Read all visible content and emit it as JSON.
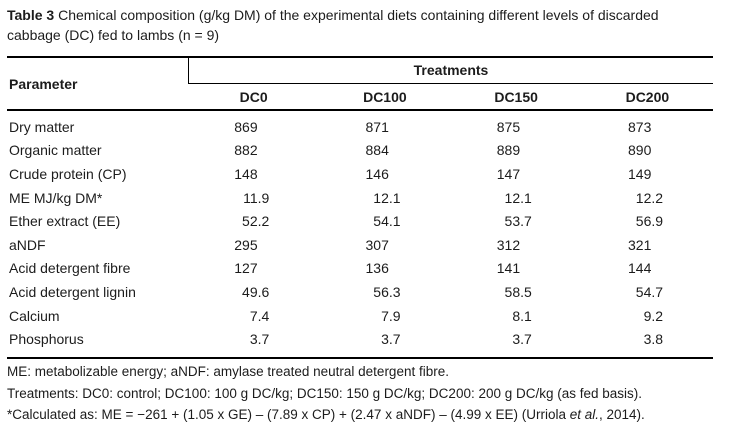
{
  "caption": {
    "label": "Table 3",
    "line1_rest": " Chemical composition (g/kg DM) of the experimental diets containing different levels of discarded",
    "line2": "cabbage (DC) fed to lambs (n = 9)"
  },
  "table": {
    "param_header": "Parameter",
    "group_header": "Treatments",
    "columns": [
      "DC0",
      "DC100",
      "DC150",
      "DC200"
    ],
    "rows": [
      {
        "parameter": "Dry matter",
        "values": [
          "869",
          "871",
          "875",
          "873"
        ]
      },
      {
        "parameter": "Organic matter",
        "values": [
          "882",
          "884",
          "889",
          "890"
        ]
      },
      {
        "parameter": "Crude protein (CP)",
        "values": [
          "148",
          "146",
          "147",
          "149"
        ]
      },
      {
        "parameter": "ME MJ/kg DM*",
        "values": [
          "11.9",
          "12.1",
          "12.1",
          "12.2"
        ]
      },
      {
        "parameter": "Ether extract (EE)",
        "values": [
          "52.2",
          "54.1",
          "53.7",
          "56.9"
        ]
      },
      {
        "parameter": "aNDF",
        "values": [
          "295",
          "307",
          "312",
          "321"
        ]
      },
      {
        "parameter": "Acid detergent fibre",
        "values": [
          "127",
          "136",
          "141",
          "144"
        ]
      },
      {
        "parameter": "Acid detergent lignin",
        "values": [
          "49.6",
          "56.3",
          "58.5",
          "54.7"
        ]
      },
      {
        "parameter": "Calcium",
        "values": [
          "7.4",
          "7.9",
          "8.1",
          "9.2"
        ]
      },
      {
        "parameter": "Phosphorus",
        "values": [
          "3.7",
          "3.7",
          "3.7",
          "3.8"
        ]
      }
    ]
  },
  "footnotes": {
    "line1": "ME: metabolizable energy; aNDF: amylase treated neutral detergent fibre.",
    "line2": "Treatments: DC0: control; DC100: 100 g DC/kg; DC150: 150 g DC/kg; DC200: 200 g DC/kg (as fed basis).",
    "line3_prefix": "*Calculated as: ME = −261 + (1.05 x GE) – (7.89 x CP) + (2.47 x aNDF) – (4.99 x EE) (Urriola ",
    "line3_italic": "et al.",
    "line3_suffix": ", 2014)."
  },
  "colors": {
    "text": "#1c1c1c",
    "rule": "#000000",
    "background": "#ffffff"
  }
}
